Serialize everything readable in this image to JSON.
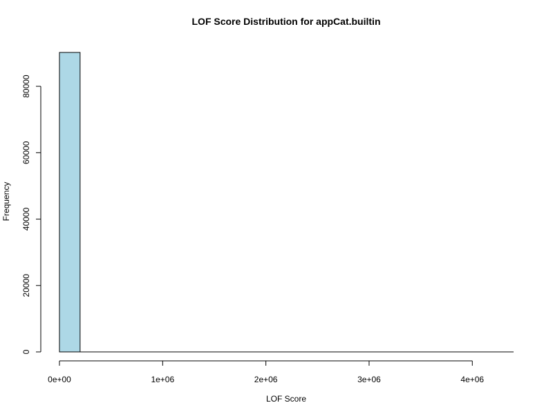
{
  "chart_data": {
    "type": "bar",
    "title": "LOF Score Distribution for appCat.builtin",
    "xlabel": "LOF Score",
    "ylabel": "Frequency",
    "bin_width": 200000,
    "bins": [
      {
        "start": 0,
        "end": 200000,
        "count": 90200
      },
      {
        "start": 200000,
        "end": 400000,
        "count": 0
      },
      {
        "start": 400000,
        "end": 600000,
        "count": 0
      },
      {
        "start": 600000,
        "end": 800000,
        "count": 0
      },
      {
        "start": 800000,
        "end": 1000000,
        "count": 0
      },
      {
        "start": 1000000,
        "end": 1200000,
        "count": 0
      },
      {
        "start": 1200000,
        "end": 1400000,
        "count": 0
      },
      {
        "start": 1400000,
        "end": 1600000,
        "count": 0
      },
      {
        "start": 1600000,
        "end": 1800000,
        "count": 0
      },
      {
        "start": 1800000,
        "end": 2000000,
        "count": 0
      },
      {
        "start": 2000000,
        "end": 2200000,
        "count": 0
      },
      {
        "start": 2200000,
        "end": 2400000,
        "count": 0
      },
      {
        "start": 2400000,
        "end": 2600000,
        "count": 0
      },
      {
        "start": 2600000,
        "end": 2800000,
        "count": 0
      },
      {
        "start": 2800000,
        "end": 3000000,
        "count": 0
      },
      {
        "start": 3000000,
        "end": 3200000,
        "count": 0
      },
      {
        "start": 3200000,
        "end": 3400000,
        "count": 0
      },
      {
        "start": 3400000,
        "end": 3600000,
        "count": 0
      },
      {
        "start": 3600000,
        "end": 3800000,
        "count": 0
      },
      {
        "start": 3800000,
        "end": 4000000,
        "count": 0
      },
      {
        "start": 4000000,
        "end": 4200000,
        "count": 0
      },
      {
        "start": 4200000,
        "end": 4400000,
        "count": 0
      }
    ],
    "xlim": [
      0,
      4400000
    ],
    "ylim": [
      0,
      90200
    ],
    "x_ticks": [
      {
        "value": 0,
        "label": "0e+00"
      },
      {
        "value": 1000000,
        "label": "1e+06"
      },
      {
        "value": 2000000,
        "label": "2e+06"
      },
      {
        "value": 3000000,
        "label": "3e+06"
      },
      {
        "value": 4000000,
        "label": "4e+06"
      }
    ],
    "y_ticks": [
      {
        "value": 0,
        "label": "0"
      },
      {
        "value": 20000,
        "label": "20000"
      },
      {
        "value": 40000,
        "label": "40000"
      },
      {
        "value": 60000,
        "label": "60000"
      },
      {
        "value": 80000,
        "label": "80000"
      }
    ],
    "bar_fill": "#add8e6",
    "bar_stroke": "#000000",
    "grid": false,
    "legend": "none"
  }
}
